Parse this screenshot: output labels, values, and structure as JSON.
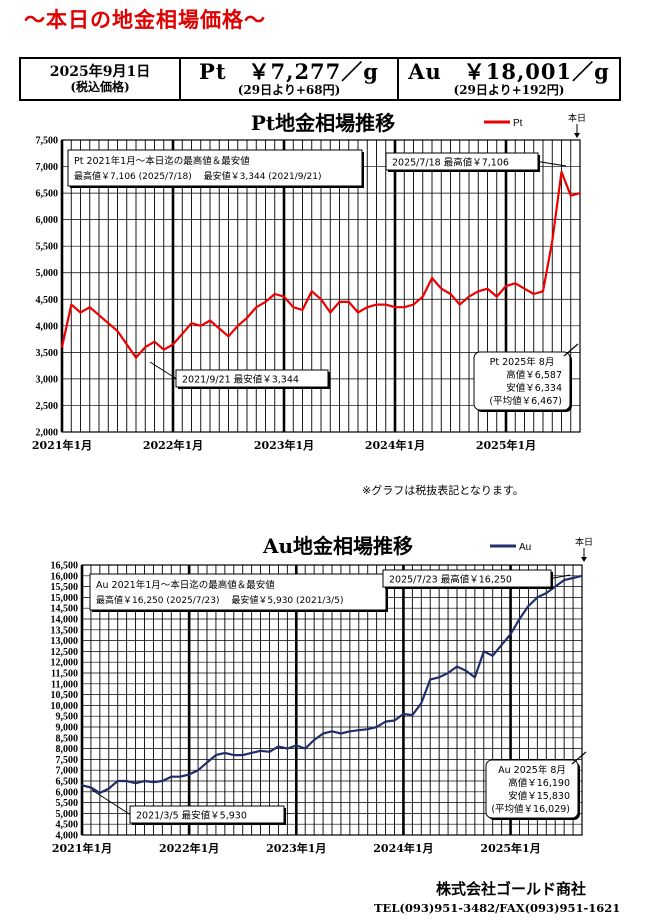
{
  "header": {
    "title": "～本日の地金相場価格～",
    "date": "2025年9月1日",
    "tax_note": "(税込価格)",
    "pt_price": "Pt　￥7,277／g",
    "pt_change": "(29日より+68円)",
    "au_price": "Au　￥18,001／g",
    "au_change": "(29日より+192円)"
  },
  "footer": {
    "note": "※グラフは税抜表記となります。",
    "company": "株式会社ゴールド商社",
    "tel": "TEL(093)951-3482/FAX(093)951-1621"
  },
  "colors": {
    "title": "#e00000",
    "pt_line": "#ee0000",
    "au_line": "#1f2f6b"
  },
  "chart_data": [
    {
      "type": "line",
      "title": "Pt地金相場推移",
      "legend": "Pt",
      "today_label": "本日",
      "ylim": [
        2000,
        7500
      ],
      "yticks": [
        "2,000",
        "2,500",
        "3,000",
        "3,500",
        "4,000",
        "4,500",
        "5,000",
        "5,500",
        "6,000",
        "6,500",
        "7,000",
        "7,500"
      ],
      "xlabels": [
        "2021年1月",
        "2022年1月",
        "2023年1月",
        "2024年1月",
        "2025年1月"
      ],
      "xlim": [
        "2021-01",
        "2025-09"
      ],
      "box_range_title": "Pt  2021年1月～本日迄の最高値＆最安値",
      "box_range_values": "最高値￥7,106  (2025/7/18)　 最安値￥3,344  (2021/9/21)",
      "callout_high": "2025/7/18  最高値￥7,106",
      "callout_low": "2021/9/21  最安値￥3,344",
      "month_box": [
        "Pt  2025年 8月",
        "高値￥6,587",
        "安値￥6,334",
        "(平均値￥6,467)"
      ],
      "series": [
        {
          "name": "Pt",
          "x": [
            "2021-01",
            "2021-02",
            "2021-03",
            "2021-04",
            "2021-05",
            "2021-06",
            "2021-07",
            "2021-08",
            "2021-09",
            "2021-10",
            "2021-11",
            "2021-12",
            "2022-01",
            "2022-02",
            "2022-03",
            "2022-04",
            "2022-05",
            "2022-06",
            "2022-07",
            "2022-08",
            "2022-09",
            "2022-10",
            "2022-11",
            "2022-12",
            "2023-01",
            "2023-02",
            "2023-03",
            "2023-04",
            "2023-05",
            "2023-06",
            "2023-07",
            "2023-08",
            "2023-09",
            "2023-10",
            "2023-11",
            "2023-12",
            "2024-01",
            "2024-02",
            "2024-03",
            "2024-04",
            "2024-05",
            "2024-06",
            "2024-07",
            "2024-08",
            "2024-09",
            "2024-10",
            "2024-11",
            "2024-12",
            "2025-01",
            "2025-02",
            "2025-03",
            "2025-04",
            "2025-05",
            "2025-06",
            "2025-07",
            "2025-08",
            "2025-09"
          ],
          "y": [
            3600,
            4400,
            4250,
            4350,
            4200,
            4050,
            3900,
            3650,
            3400,
            3600,
            3700,
            3550,
            3650,
            3850,
            4050,
            4000,
            4100,
            3950,
            3800,
            4000,
            4150,
            4350,
            4450,
            4600,
            4550,
            4350,
            4300,
            4650,
            4500,
            4250,
            4450,
            4450,
            4250,
            4350,
            4400,
            4400,
            4350,
            4350,
            4400,
            4550,
            4900,
            4700,
            4600,
            4400,
            4550,
            4650,
            4700,
            4550,
            4750,
            4800,
            4700,
            4600,
            4650,
            5600,
            6900,
            6450,
            6500
          ]
        }
      ]
    },
    {
      "type": "line",
      "title": "Au地金相場推移",
      "legend": "Au",
      "today_label": "本日",
      "ylim": [
        4000,
        16500
      ],
      "yticks": [
        "4,000",
        "4,500",
        "5,000",
        "5,500",
        "6,000",
        "6,500",
        "7,000",
        "7,500",
        "8,000",
        "8,500",
        "9,000",
        "9,500",
        "10,000",
        "10,500",
        "11,000",
        "11,500",
        "12,000",
        "12,500",
        "13,000",
        "13,500",
        "14,000",
        "14,500",
        "15,000",
        "15,500",
        "16,000",
        "16,500"
      ],
      "xlabels": [
        "2021年1月",
        "2022年1月",
        "2023年1月",
        "2024年1月",
        "2025年1月"
      ],
      "xlim": [
        "2021-01",
        "2025-09"
      ],
      "box_range_title": "Au  2021年1月～本日迄の最高値＆最安値",
      "box_range_values": "最高値￥16,250  (2025/7/23)　 最安値￥5,930  (2021/3/5)",
      "callout_high": "2025/7/23  最高値￥16,250",
      "callout_low": "2021/3/5  最安値￥5,930",
      "month_box": [
        "Au  2025年 8月",
        "高値￥16,190",
        "安値￥15,830",
        "(平均値￥16,029)"
      ],
      "series": [
        {
          "name": "Au",
          "x": [
            "2021-01",
            "2021-02",
            "2021-03",
            "2021-04",
            "2021-05",
            "2021-06",
            "2021-07",
            "2021-08",
            "2021-09",
            "2021-10",
            "2021-11",
            "2021-12",
            "2022-01",
            "2022-02",
            "2022-03",
            "2022-04",
            "2022-05",
            "2022-06",
            "2022-07",
            "2022-08",
            "2022-09",
            "2022-10",
            "2022-11",
            "2022-12",
            "2023-01",
            "2023-02",
            "2023-03",
            "2023-04",
            "2023-05",
            "2023-06",
            "2023-07",
            "2023-08",
            "2023-09",
            "2023-10",
            "2023-11",
            "2023-12",
            "2024-01",
            "2024-02",
            "2024-03",
            "2024-04",
            "2024-05",
            "2024-06",
            "2024-07",
            "2024-08",
            "2024-09",
            "2024-10",
            "2024-11",
            "2024-12",
            "2025-01",
            "2025-02",
            "2025-03",
            "2025-04",
            "2025-05",
            "2025-06",
            "2025-07",
            "2025-08",
            "2025-09"
          ],
          "y": [
            6300,
            6200,
            5950,
            6150,
            6500,
            6500,
            6400,
            6500,
            6450,
            6500,
            6700,
            6700,
            6800,
            7000,
            7350,
            7700,
            7800,
            7700,
            7700,
            7800,
            7900,
            7850,
            8100,
            8000,
            8150,
            8000,
            8400,
            8700,
            8800,
            8700,
            8800,
            8850,
            8900,
            9000,
            9250,
            9300,
            9600,
            9550,
            10100,
            11200,
            11300,
            11500,
            11800,
            11600,
            11300,
            12500,
            12300,
            12800,
            13300,
            14000,
            14600,
            15000,
            15200,
            15500,
            15800,
            15900,
            16000
          ]
        }
      ]
    }
  ]
}
